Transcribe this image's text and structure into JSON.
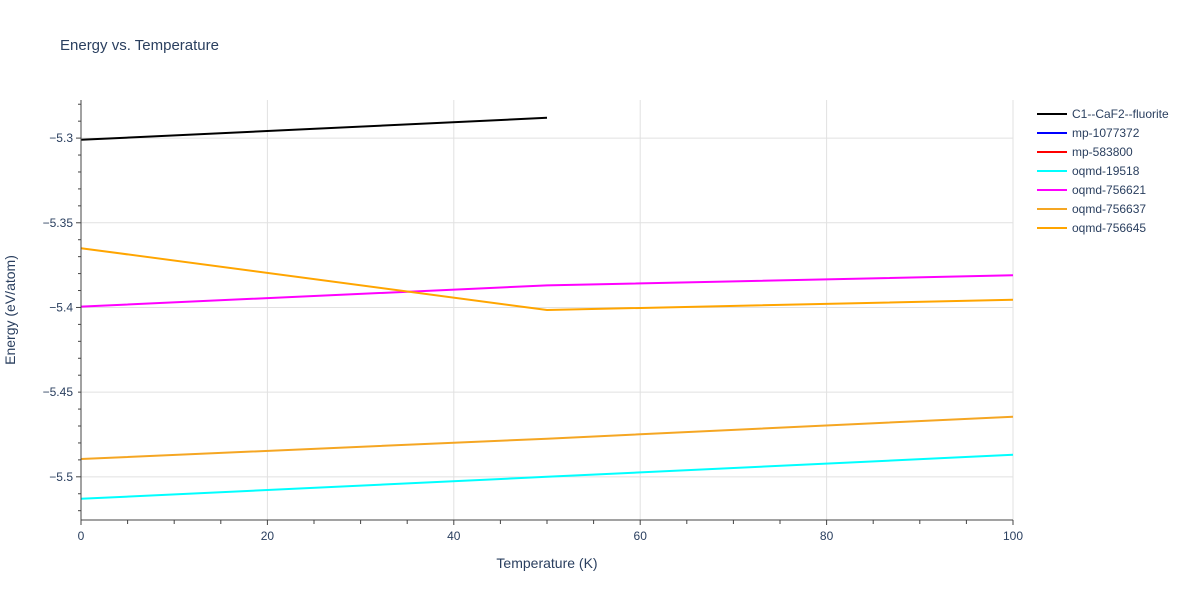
{
  "chart_data": {
    "type": "line",
    "title": "Energy vs. Temperature",
    "xlabel": "Temperature (K)",
    "ylabel": "Energy (eV/atom)",
    "xlim": [
      0,
      100
    ],
    "ylim": [
      -5.5255,
      -5.2775
    ],
    "xticks": [
      0,
      20,
      40,
      60,
      80,
      100
    ],
    "xtick_labels": [
      "0",
      "20",
      "40",
      "60",
      "80",
      "100"
    ],
    "yticks": [
      -5.3,
      -5.35,
      -5.4,
      -5.45,
      -5.5
    ],
    "ytick_labels": [
      "−5.3",
      "−5.35",
      "−5.4",
      "−5.45",
      "−5.5"
    ],
    "grid": true,
    "legend_position": "right",
    "series": [
      {
        "name": "C1--CaF2--fluorite",
        "color": "#000000",
        "x": [
          0,
          50
        ],
        "y": [
          -5.301,
          -5.288
        ]
      },
      {
        "name": "mp-1077372",
        "color": "#0000ff",
        "x": [],
        "y": []
      },
      {
        "name": "mp-583800",
        "color": "#ff0000",
        "x": [],
        "y": []
      },
      {
        "name": "oqmd-19518",
        "color": "#00ffff",
        "x": [
          0,
          50,
          100
        ],
        "y": [
          -5.513,
          -5.5,
          -5.487
        ]
      },
      {
        "name": "oqmd-756621",
        "color": "#ff00ff",
        "x": [
          0,
          50,
          100
        ],
        "y": [
          -5.3995,
          -5.387,
          -5.381
        ]
      },
      {
        "name": "oqmd-756637",
        "color": "#f5a623",
        "x": [
          0,
          50,
          100
        ],
        "y": [
          -5.4895,
          -5.4775,
          -5.4645
        ]
      },
      {
        "name": "oqmd-756645",
        "color": "#ffa500",
        "x": [
          0,
          50,
          100
        ],
        "y": [
          -5.365,
          -5.4015,
          -5.3955
        ]
      }
    ]
  }
}
